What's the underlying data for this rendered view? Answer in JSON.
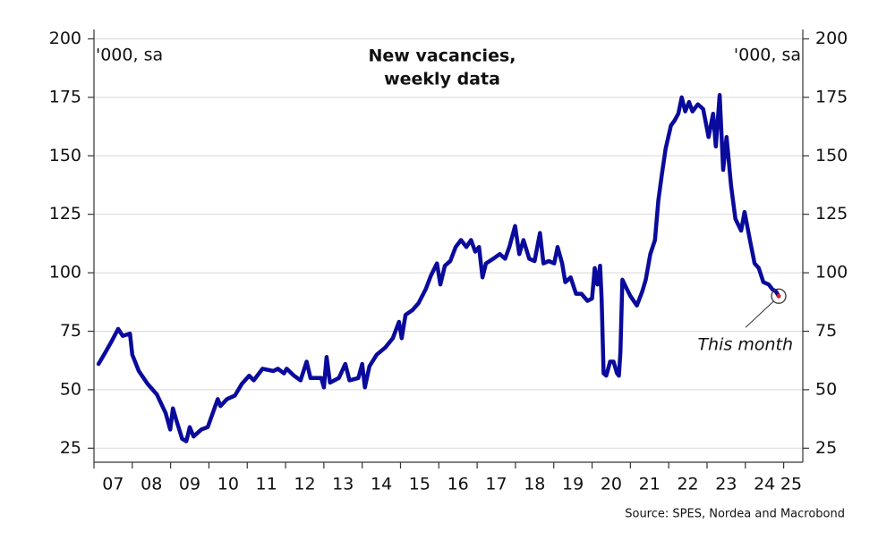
{
  "chart_data": {
    "type": "line",
    "title": [
      "New vacancies,",
      "weekly data"
    ],
    "y_unit_label": "'000, sa",
    "y2_unit_label": "'000, sa",
    "annotation": "This month",
    "source": "Source: SPES, Nordea and Macrobond",
    "grid": true,
    "xlim": [
      2007,
      2025.5
    ],
    "xticks": [
      {
        "value": 2007,
        "label": "07"
      },
      {
        "value": 2008,
        "label": "08"
      },
      {
        "value": 2009,
        "label": "09"
      },
      {
        "value": 2010,
        "label": "10"
      },
      {
        "value": 2011,
        "label": "11"
      },
      {
        "value": 2012,
        "label": "12"
      },
      {
        "value": 2013,
        "label": "13"
      },
      {
        "value": 2014,
        "label": "14"
      },
      {
        "value": 2015,
        "label": "15"
      },
      {
        "value": 2016,
        "label": "16"
      },
      {
        "value": 2017,
        "label": "17"
      },
      {
        "value": 2018,
        "label": "18"
      },
      {
        "value": 2019,
        "label": "19"
      },
      {
        "value": 2020,
        "label": "20"
      },
      {
        "value": 2021,
        "label": "21"
      },
      {
        "value": 2022,
        "label": "22"
      },
      {
        "value": 2023,
        "label": "23"
      },
      {
        "value": 2024,
        "label": "24"
      },
      {
        "value": 2025,
        "label": "25"
      }
    ],
    "ylim": [
      19,
      204
    ],
    "yticks": [
      25,
      50,
      75,
      100,
      125,
      150,
      175,
      200
    ],
    "y2lim": [
      19,
      204
    ],
    "y2ticks": [
      25,
      50,
      75,
      100,
      125,
      150,
      175,
      200
    ],
    "x": [
      2007.12,
      2007.3,
      2007.47,
      2007.63,
      2007.75,
      2007.94,
      2008.0,
      2008.17,
      2008.4,
      2008.64,
      2008.87,
      2008.99,
      2009.06,
      2009.15,
      2009.3,
      2009.41,
      2009.5,
      2009.6,
      2009.8,
      2009.97,
      2010.1,
      2010.23,
      2010.3,
      2010.47,
      2010.68,
      2010.86,
      2011.05,
      2011.17,
      2011.4,
      2011.68,
      2011.8,
      2011.96,
      2012.03,
      2012.22,
      2012.39,
      2012.55,
      2012.65,
      2012.93,
      2013.0,
      2013.07,
      2013.16,
      2013.39,
      2013.56,
      2013.67,
      2013.9,
      2014.0,
      2014.07,
      2014.19,
      2014.38,
      2014.6,
      2014.8,
      2014.96,
      2015.03,
      2015.13,
      2015.31,
      2015.47,
      2015.66,
      2015.8,
      2015.95,
      2016.04,
      2016.16,
      2016.3,
      2016.44,
      2016.58,
      2016.72,
      2016.84,
      2016.95,
      2017.05,
      2017.14,
      2017.23,
      2017.42,
      2017.59,
      2017.73,
      2017.84,
      2017.99,
      2018.1,
      2018.21,
      2018.36,
      2018.5,
      2018.64,
      2018.73,
      2018.87,
      2019.01,
      2019.1,
      2019.22,
      2019.3,
      2019.44,
      2019.58,
      2019.72,
      2019.88,
      2020.0,
      2020.07,
      2020.14,
      2020.21,
      2020.25,
      2020.3,
      2020.37,
      2020.47,
      2020.56,
      2020.65,
      2020.7,
      2020.74,
      2020.79,
      2020.88,
      2021.0,
      2021.17,
      2021.31,
      2021.4,
      2021.52,
      2021.64,
      2021.73,
      2021.82,
      2021.92,
      2022.06,
      2022.15,
      2022.25,
      2022.34,
      2022.43,
      2022.53,
      2022.62,
      2022.76,
      2022.9,
      2023.04,
      2023.16,
      2023.23,
      2023.33,
      2023.42,
      2023.51,
      2023.63,
      2023.74,
      2023.89,
      2023.98,
      2024.12,
      2024.24,
      2024.35,
      2024.47,
      2024.61,
      2024.7,
      2024.8,
      2024.87
    ],
    "series": [
      {
        "color": "#0a0a9c",
        "values": [
          61,
          66,
          71,
          76,
          73,
          74,
          65,
          58,
          52.5,
          48,
          40,
          33,
          42,
          37,
          29,
          28,
          34,
          30,
          33,
          34,
          40,
          46,
          43,
          46,
          47.5,
          52.5,
          56,
          54,
          59,
          58,
          59,
          57,
          59,
          56,
          54,
          62,
          55,
          55,
          51,
          64,
          53,
          55,
          61,
          54,
          55,
          61,
          51,
          60,
          65,
          68,
          72,
          79,
          72,
          82,
          84,
          87,
          93,
          99,
          104,
          95,
          103,
          105,
          111,
          114,
          111,
          114,
          109,
          111,
          98,
          104,
          106,
          108,
          106,
          111,
          120,
          108,
          114,
          106,
          105,
          117,
          104,
          105,
          104,
          111,
          104,
          96,
          98,
          91,
          91,
          88,
          89,
          102,
          95,
          103,
          89,
          57,
          56,
          62,
          62,
          57,
          56,
          66,
          97,
          94,
          90,
          86,
          92,
          97,
          108,
          114,
          131,
          142,
          153,
          163,
          165,
          168,
          175,
          169,
          173,
          169,
          172,
          170,
          158,
          168,
          154,
          176,
          144,
          158,
          137,
          123,
          118,
          126,
          114,
          104,
          102,
          96,
          95,
          93,
          92,
          90
        ]
      }
    ]
  }
}
